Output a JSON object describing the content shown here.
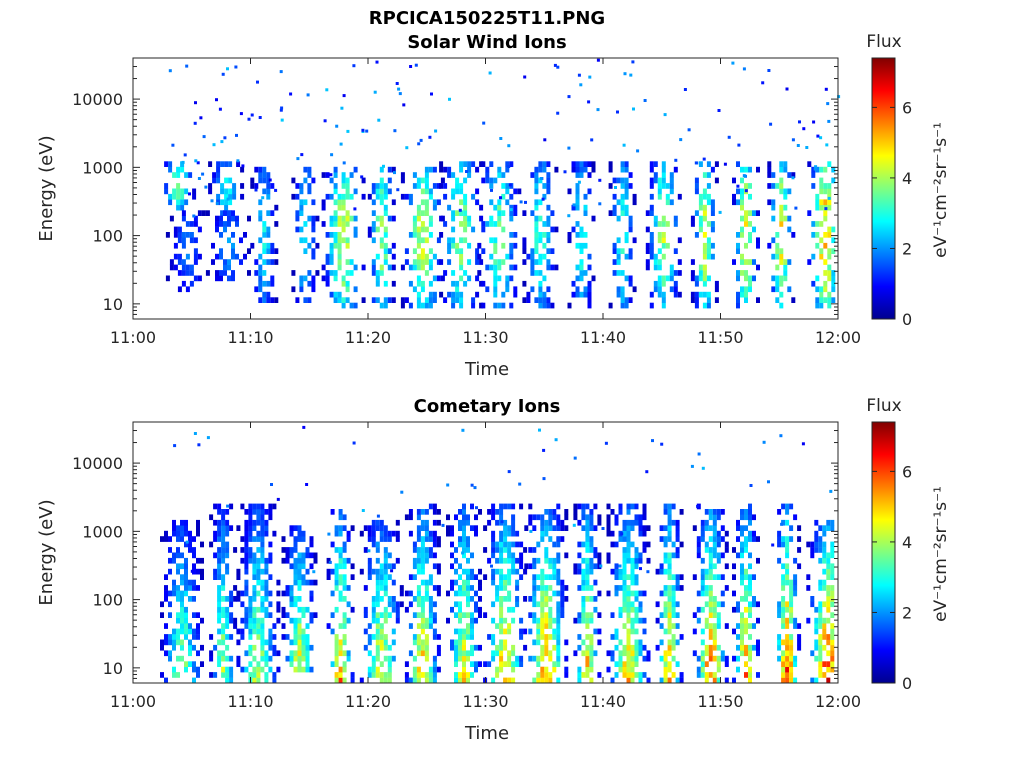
{
  "figure_title": "RPCICA150225T11.PNG",
  "colorbar": {
    "title": "Flux",
    "unit_label": "eV⁻¹cm⁻²sr⁻¹s⁻¹",
    "ticks": [
      0,
      2,
      4,
      6
    ],
    "range": [
      0,
      7.4
    ],
    "colormap": "jet"
  },
  "chart_data": [
    {
      "type": "heatmap",
      "title": "Solar Wind Ions",
      "xlabel": "Time",
      "ylabel": "Energy (eV)",
      "x_ticks": [
        "11:00",
        "11:10",
        "11:20",
        "11:30",
        "11:40",
        "11:50",
        "12:00"
      ],
      "x_range": [
        "11:00",
        "12:00"
      ],
      "y_scale": "log",
      "y_ticks": [
        10,
        100,
        1000,
        10000
      ],
      "y_range": [
        6,
        40000
      ],
      "colorbar_title": "Flux",
      "colorbar_range": [
        0,
        7.4
      ],
      "bursts": [
        {
          "t": "11:03:40",
          "e_min": 250,
          "e_max": 1300,
          "peak": 4.4
        },
        {
          "t": "11:04:30",
          "e_min": 15,
          "e_max": 250,
          "peak": 2.0
        },
        {
          "t": "11:07:45",
          "e_min": 200,
          "e_max": 1200,
          "peak": 3.5
        },
        {
          "t": "11:08:00",
          "e_min": 20,
          "e_max": 250,
          "peak": 2.3
        },
        {
          "t": "11:11:00",
          "e_min": 10,
          "e_max": 1000,
          "peak": 3.2
        },
        {
          "t": "11:14:30",
          "e_min": 10,
          "e_max": 1000,
          "peak": 3.3
        },
        {
          "t": "11:17:45",
          "e_min": 8,
          "e_max": 1100,
          "peak": 4.9
        },
        {
          "t": "11:21:00",
          "e_min": 8,
          "e_max": 1100,
          "peak": 4.6
        },
        {
          "t": "11:24:30",
          "e_min": 8,
          "e_max": 1100,
          "peak": 4.8
        },
        {
          "t": "11:27:45",
          "e_min": 8,
          "e_max": 1200,
          "peak": 4.3
        },
        {
          "t": "11:31:00",
          "e_min": 8,
          "e_max": 1200,
          "peak": 4.0
        },
        {
          "t": "11:34:30",
          "e_min": 8,
          "e_max": 1200,
          "peak": 3.6
        },
        {
          "t": "11:38:00",
          "e_min": 8,
          "e_max": 1200,
          "peak": 3.4
        },
        {
          "t": "11:41:30",
          "e_min": 8,
          "e_max": 1200,
          "peak": 3.6
        },
        {
          "t": "11:45:00",
          "e_min": 8,
          "e_max": 1200,
          "peak": 4.6
        },
        {
          "t": "11:48:30",
          "e_min": 8,
          "e_max": 1200,
          "peak": 4.8
        },
        {
          "t": "11:52:00",
          "e_min": 8,
          "e_max": 1200,
          "peak": 5.4
        },
        {
          "t": "11:55:00",
          "e_min": 8,
          "e_max": 1300,
          "peak": 5.2
        },
        {
          "t": "11:58:45",
          "e_min": 8,
          "e_max": 1300,
          "peak": 5.8
        }
      ]
    },
    {
      "type": "heatmap",
      "title": "Cometary Ions",
      "xlabel": "Time",
      "ylabel": "Energy (eV)",
      "x_ticks": [
        "11:00",
        "11:10",
        "11:20",
        "11:30",
        "11:40",
        "11:50",
        "12:00"
      ],
      "x_range": [
        "11:00",
        "12:00"
      ],
      "y_scale": "log",
      "y_ticks": [
        10,
        100,
        1000,
        10000
      ],
      "y_range": [
        6,
        40000
      ],
      "colorbar_title": "Flux",
      "colorbar_range": [
        0,
        7.4
      ],
      "bursts": [
        {
          "t": "11:04:00",
          "e_min": 6,
          "e_max": 1400,
          "peak": 4.6
        },
        {
          "t": "11:07:30",
          "e_min": 6,
          "e_max": 2600,
          "peak": 4.8
        },
        {
          "t": "11:10:30",
          "e_min": 6,
          "e_max": 2600,
          "peak": 5.0
        },
        {
          "t": "11:14:00",
          "e_min": 8,
          "e_max": 1300,
          "peak": 5.4
        },
        {
          "t": "11:17:30",
          "e_min": 6,
          "e_max": 2200,
          "peak": 6.3
        },
        {
          "t": "11:21:00",
          "e_min": 6,
          "e_max": 1400,
          "peak": 5.6
        },
        {
          "t": "11:24:30",
          "e_min": 6,
          "e_max": 2600,
          "peak": 6.0
        },
        {
          "t": "11:28:00",
          "e_min": 6,
          "e_max": 2600,
          "peak": 5.7
        },
        {
          "t": "11:31:30",
          "e_min": 6,
          "e_max": 2600,
          "peak": 6.2
        },
        {
          "t": "11:35:00",
          "e_min": 6,
          "e_max": 2600,
          "peak": 6.5
        },
        {
          "t": "11:38:30",
          "e_min": 6,
          "e_max": 2600,
          "peak": 6.1
        },
        {
          "t": "11:42:00",
          "e_min": 6,
          "e_max": 2600,
          "peak": 5.9
        },
        {
          "t": "11:45:30",
          "e_min": 6,
          "e_max": 2600,
          "peak": 6.5
        },
        {
          "t": "11:49:00",
          "e_min": 6,
          "e_max": 2600,
          "peak": 6.8
        },
        {
          "t": "11:52:00",
          "e_min": 6,
          "e_max": 2600,
          "peak": 6.6
        },
        {
          "t": "11:55:30",
          "e_min": 6,
          "e_max": 2600,
          "peak": 7.1
        },
        {
          "t": "11:59:00",
          "e_min": 6,
          "e_max": 1500,
          "peak": 7.2
        }
      ]
    }
  ]
}
